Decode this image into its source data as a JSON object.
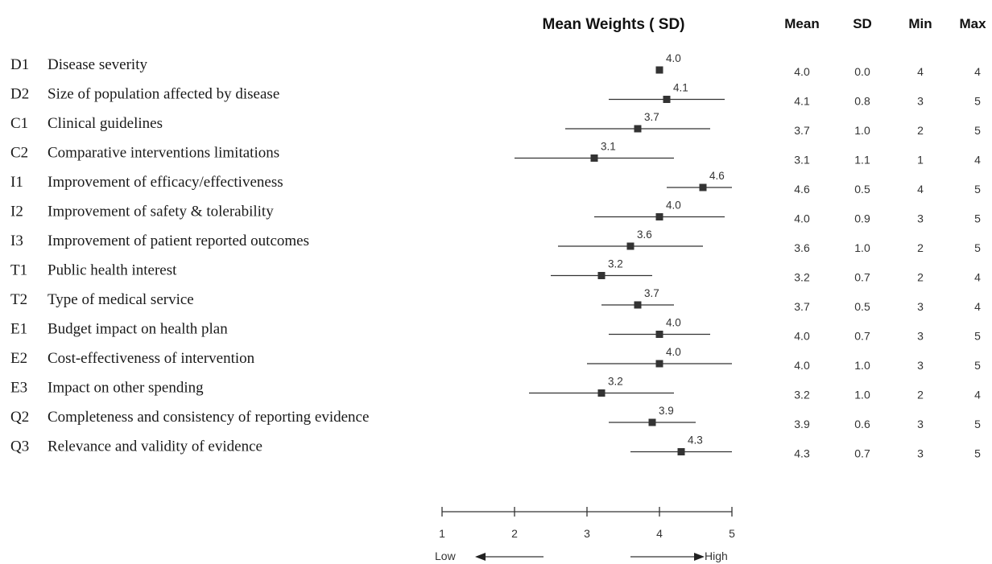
{
  "chart_data": {
    "type": "forest",
    "title": "Mean Weights ( SD)",
    "xlim": [
      1,
      5
    ],
    "x_ticks": [
      "1",
      "2",
      "3",
      "4",
      "5"
    ],
    "low_label": "Low",
    "high_label": "High",
    "columns": [
      "Mean",
      "SD",
      "Min",
      "Max"
    ],
    "rows": [
      {
        "code": "D1",
        "name": "Disease severity",
        "mean": "4.0",
        "sd": "0.0",
        "min": "4",
        "max": "4"
      },
      {
        "code": "D2",
        "name": "Size of population affected by disease",
        "mean": "4.1",
        "sd": "0.8",
        "min": "3",
        "max": "5"
      },
      {
        "code": "C1",
        "name": "Clinical guidelines",
        "mean": "3.7",
        "sd": "1.0",
        "min": "2",
        "max": "5"
      },
      {
        "code": "C2",
        "name": "Comparative interventions limitations",
        "mean": "3.1",
        "sd": "1.1",
        "min": "1",
        "max": "4"
      },
      {
        "code": "I1",
        "name": "Improvement of efficacy/effectiveness",
        "mean": "4.6",
        "sd": "0.5",
        "min": "4",
        "max": "5"
      },
      {
        "code": "I2",
        "name": "Improvement of safety & tolerability",
        "mean": "4.0",
        "sd": "0.9",
        "min": "3",
        "max": "5"
      },
      {
        "code": "I3",
        "name": "Improvement of patient reported outcomes",
        "mean": "3.6",
        "sd": "1.0",
        "min": "2",
        "max": "5"
      },
      {
        "code": "T1",
        "name": "Public health interest",
        "mean": "3.2",
        "sd": "0.7",
        "min": "2",
        "max": "4"
      },
      {
        "code": "T2",
        "name": "Type of medical service",
        "mean": "3.7",
        "sd": "0.5",
        "min": "3",
        "max": "4"
      },
      {
        "code": "E1",
        "name": "Budget impact on health plan",
        "mean": "4.0",
        "sd": "0.7",
        "min": "3",
        "max": "5"
      },
      {
        "code": "E2",
        "name": "Cost-effectiveness of intervention",
        "mean": "4.0",
        "sd": "1.0",
        "min": "3",
        "max": "5"
      },
      {
        "code": "E3",
        "name": "Impact on other spending",
        "mean": "3.2",
        "sd": "1.0",
        "min": "2",
        "max": "4"
      },
      {
        "code": "Q2",
        "name": "Completeness and consistency of reporting evidence",
        "mean": "3.9",
        "sd": "0.6",
        "min": "3",
        "max": "5"
      },
      {
        "code": "Q3",
        "name": "Relevance and validity of evidence",
        "mean": "4.3",
        "sd": "0.7",
        "min": "3",
        "max": "5"
      }
    ]
  }
}
